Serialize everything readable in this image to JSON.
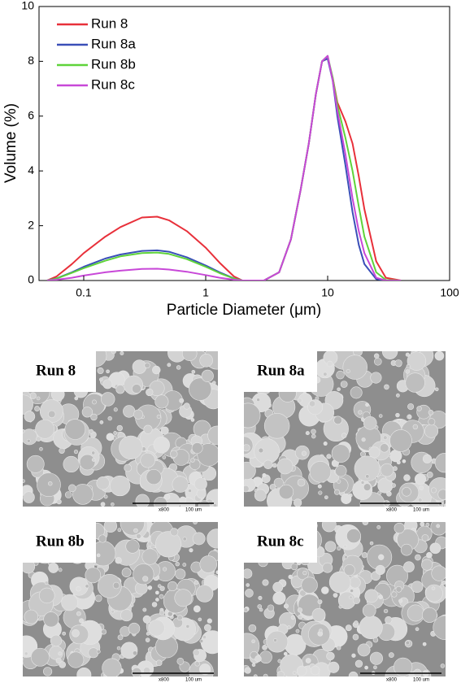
{
  "chart_data": {
    "type": "line",
    "xlabel": "Particle Diameter (μm)",
    "ylabel": "Volume (%)",
    "xlim": [
      0.043,
      100
    ],
    "ylim": [
      0,
      10
    ],
    "xscale": "log",
    "xticks": [
      0.1,
      1,
      10,
      100
    ],
    "yticks": [
      0,
      2,
      4,
      6,
      8,
      10
    ],
    "legend": "upper left",
    "x": [
      0.05,
      0.06,
      0.08,
      0.1,
      0.15,
      0.2,
      0.3,
      0.4,
      0.5,
      0.7,
      1,
      1.3,
      1.7,
      2,
      3,
      4,
      5,
      6,
      7,
      8,
      9,
      10,
      11,
      12,
      14,
      16,
      18,
      20,
      25,
      30,
      40
    ],
    "series": [
      {
        "name": "Run 8",
        "color": "#e8303a",
        "values": [
          0,
          0.15,
          0.6,
          1.0,
          1.6,
          1.95,
          2.3,
          2.33,
          2.2,
          1.8,
          1.2,
          0.65,
          0.15,
          0,
          0,
          0.3,
          1.5,
          3.3,
          5.0,
          6.8,
          8.0,
          8.1,
          7.4,
          6.5,
          5.8,
          5.0,
          3.8,
          2.6,
          0.7,
          0.1,
          0
        ]
      },
      {
        "name": "Run 8a",
        "color": "#3a4fb8",
        "values": [
          0,
          0.08,
          0.3,
          0.5,
          0.8,
          0.95,
          1.08,
          1.1,
          1.05,
          0.85,
          0.55,
          0.3,
          0.08,
          0,
          0,
          0.3,
          1.5,
          3.3,
          5.0,
          6.8,
          8.0,
          8.1,
          7.3,
          6.0,
          4.2,
          2.5,
          1.3,
          0.6,
          0.05,
          0,
          0
        ]
      },
      {
        "name": "Run 8b",
        "color": "#5fd33a",
        "values": [
          0,
          0.07,
          0.28,
          0.45,
          0.72,
          0.88,
          1.0,
          1.02,
          0.97,
          0.78,
          0.5,
          0.27,
          0.07,
          0,
          0,
          0.3,
          1.5,
          3.3,
          5.0,
          6.8,
          8.0,
          8.2,
          7.4,
          6.4,
          5.2,
          4.0,
          2.7,
          1.6,
          0.3,
          0.02,
          0
        ]
      },
      {
        "name": "Run 8c",
        "color": "#c848d8",
        "values": [
          0,
          0.03,
          0.1,
          0.18,
          0.3,
          0.36,
          0.42,
          0.43,
          0.4,
          0.32,
          0.2,
          0.1,
          0.03,
          0,
          0,
          0.3,
          1.5,
          3.3,
          5.0,
          6.8,
          8.0,
          8.2,
          7.3,
          6.2,
          4.6,
          3.0,
          1.8,
          1.0,
          0.1,
          0,
          0
        ]
      }
    ]
  },
  "images": [
    {
      "label": "Run 8",
      "magnification": "x800",
      "scale": "100 um"
    },
    {
      "label": "Run 8a",
      "magnification": "x800",
      "scale": "100 um"
    },
    {
      "label": "Run 8b",
      "magnification": "x800",
      "scale": "100 um"
    },
    {
      "label": "Run 8c",
      "magnification": "x800",
      "scale": "100 um"
    }
  ]
}
